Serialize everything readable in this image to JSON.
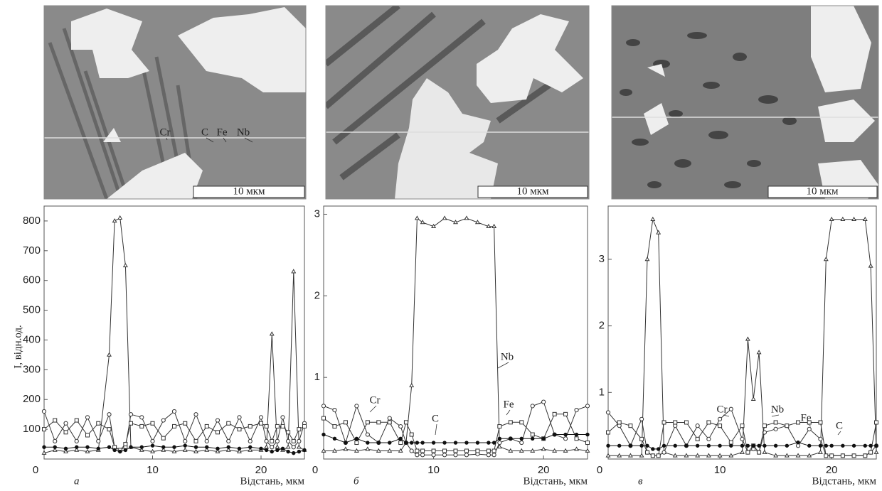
{
  "chart_data": [
    {
      "type": "line",
      "panel_label": "а",
      "scale_label": "10 мкм",
      "x_label": "Відстань, мкм",
      "y_label": "I, відн.од.",
      "xlim": [
        0,
        24
      ],
      "ylim": [
        0,
        850
      ],
      "xticks": [
        0,
        10,
        20
      ],
      "yticks": [
        100,
        200,
        300,
        400,
        500,
        600,
        700,
        800
      ],
      "x": [
        0,
        1,
        2,
        3,
        4,
        5,
        6,
        6.5,
        7,
        7.5,
        8,
        9,
        10,
        11,
        12,
        13,
        14,
        15,
        16,
        17,
        18,
        19,
        20,
        20.5,
        21,
        21.5,
        22,
        22.5,
        23,
        23.5,
        24
      ],
      "series": [
        {
          "name": "Nb",
          "color": "#333",
          "marker": "triangle",
          "values": [
            20,
            30,
            25,
            30,
            25,
            30,
            350,
            800,
            810,
            650,
            40,
            30,
            25,
            30,
            25,
            30,
            25,
            30,
            25,
            30,
            25,
            30,
            30,
            40,
            420,
            40,
            30,
            40,
            630,
            40,
            30
          ]
        },
        {
          "name": "Cr",
          "color": "#333",
          "marker": "circle",
          "values": [
            160,
            60,
            120,
            60,
            140,
            60,
            150,
            40,
            30,
            40,
            150,
            140,
            60,
            130,
            160,
            60,
            150,
            60,
            130,
            60,
            140,
            60,
            140,
            60,
            40,
            60,
            140,
            60,
            40,
            60,
            120
          ]
        },
        {
          "name": "Fe",
          "color": "#333",
          "marker": "square",
          "values": [
            100,
            130,
            90,
            130,
            80,
            120,
            100,
            40,
            30,
            50,
            120,
            110,
            120,
            70,
            110,
            120,
            60,
            110,
            90,
            120,
            100,
            110,
            120,
            110,
            60,
            110,
            110,
            90,
            60,
            100,
            110
          ]
        },
        {
          "name": "C",
          "color": "#111",
          "marker": "dot",
          "values": [
            40,
            40,
            35,
            40,
            40,
            35,
            40,
            30,
            25,
            30,
            40,
            40,
            45,
            40,
            40,
            45,
            40,
            40,
            35,
            40,
            35,
            40,
            35,
            30,
            25,
            30,
            35,
            25,
            20,
            25,
            30
          ]
        }
      ]
    },
    {
      "type": "line",
      "panel_label": "б",
      "scale_label": "10 мкм",
      "x_label": "Відстань, мкм",
      "xlim": [
        0,
        24
      ],
      "ylim": [
        0,
        3.1
      ],
      "xticks": [
        0,
        10,
        20
      ],
      "yticks": [
        1,
        2,
        3
      ],
      "x": [
        0,
        1,
        2,
        3,
        4,
        5,
        6,
        7,
        7.5,
        8,
        8.5,
        9,
        10,
        11,
        12,
        13,
        14,
        15,
        15.5,
        16,
        17,
        18,
        19,
        20,
        21,
        22,
        23,
        24
      ],
      "series": [
        {
          "name": "Nb",
          "color": "#333",
          "marker": "triangle",
          "values": [
            0.1,
            0.1,
            0.12,
            0.1,
            0.12,
            0.1,
            0.1,
            0.1,
            0.2,
            0.9,
            2.95,
            2.9,
            2.85,
            2.95,
            2.9,
            2.95,
            2.9,
            2.85,
            2.85,
            0.15,
            0.1,
            0.1,
            0.1,
            0.12,
            0.1,
            0.1,
            0.12,
            0.1
          ]
        },
        {
          "name": "Cr",
          "color": "#333",
          "marker": "circle",
          "values": [
            0.65,
            0.6,
            0.2,
            0.65,
            0.3,
            0.2,
            0.5,
            0.4,
            0.2,
            0.1,
            0.05,
            0.05,
            0.05,
            0.05,
            0.05,
            0.05,
            0.06,
            0.05,
            0.05,
            0.2,
            0.25,
            0.2,
            0.65,
            0.7,
            0.3,
            0.25,
            0.6,
            0.65
          ]
        },
        {
          "name": "Fe",
          "color": "#333",
          "marker": "square",
          "values": [
            0.5,
            0.4,
            0.45,
            0.2,
            0.45,
            0.45,
            0.45,
            0.2,
            0.45,
            0.3,
            0.1,
            0.1,
            0.1,
            0.1,
            0.1,
            0.1,
            0.1,
            0.1,
            0.1,
            0.4,
            0.45,
            0.45,
            0.3,
            0.25,
            0.55,
            0.55,
            0.25,
            0.2
          ]
        },
        {
          "name": "C",
          "color": "#111",
          "marker": "dot",
          "values": [
            0.3,
            0.25,
            0.2,
            0.25,
            0.2,
            0.2,
            0.2,
            0.25,
            0.2,
            0.2,
            0.2,
            0.2,
            0.2,
            0.2,
            0.2,
            0.2,
            0.2,
            0.2,
            0.2,
            0.25,
            0.25,
            0.25,
            0.25,
            0.25,
            0.3,
            0.3,
            0.3,
            0.3
          ]
        }
      ]
    },
    {
      "type": "line",
      "panel_label": "в",
      "scale_label": "10 мкм",
      "x_label": "Відстань, мкм",
      "xlim": [
        0,
        24
      ],
      "ylim": [
        0,
        3.8
      ],
      "xticks": [
        0,
        10,
        20
      ],
      "yticks": [
        1,
        2,
        3
      ],
      "x": [
        0,
        1,
        2,
        3,
        3.5,
        4,
        4.5,
        5,
        6,
        7,
        8,
        9,
        10,
        11,
        12,
        12.5,
        13,
        13.5,
        14,
        15,
        16,
        17,
        18,
        19,
        19.5,
        20,
        21,
        22,
        23,
        23.5,
        24
      ],
      "series": [
        {
          "name": "Nb",
          "color": "#333",
          "marker": "triangle",
          "values": [
            0.05,
            0.05,
            0.05,
            0.05,
            3.0,
            3.6,
            3.4,
            0.1,
            0.05,
            0.05,
            0.05,
            0.05,
            0.05,
            0.05,
            0.1,
            1.8,
            0.9,
            1.6,
            0.1,
            0.05,
            0.05,
            0.05,
            0.05,
            0.1,
            3.0,
            3.6,
            3.6,
            3.6,
            3.6,
            2.9,
            0.1
          ]
        },
        {
          "name": "Cr",
          "color": "#333",
          "marker": "circle",
          "values": [
            0.7,
            0.5,
            0.2,
            0.6,
            0.1,
            0.05,
            0.05,
            0.1,
            0.5,
            0.2,
            0.5,
            0.3,
            0.6,
            0.75,
            0.3,
            0.1,
            0.15,
            0.1,
            0.4,
            0.45,
            0.5,
            0.2,
            0.45,
            0.3,
            0.05,
            0.05,
            0.05,
            0.05,
            0.05,
            0.1,
            0.2
          ]
        },
        {
          "name": "Fe",
          "color": "#333",
          "marker": "square",
          "values": [
            0.4,
            0.55,
            0.5,
            0.3,
            0.1,
            0.05,
            0.05,
            0.55,
            0.55,
            0.55,
            0.3,
            0.55,
            0.5,
            0.25,
            0.5,
            0.1,
            0.2,
            0.1,
            0.5,
            0.55,
            0.5,
            0.55,
            0.55,
            0.55,
            0.05,
            0.05,
            0.05,
            0.05,
            0.05,
            0.1,
            0.55
          ]
        },
        {
          "name": "C",
          "color": "#111",
          "marker": "dot",
          "values": [
            0.2,
            0.2,
            0.2,
            0.2,
            0.2,
            0.15,
            0.15,
            0.2,
            0.2,
            0.2,
            0.2,
            0.2,
            0.2,
            0.2,
            0.2,
            0.2,
            0.2,
            0.2,
            0.2,
            0.2,
            0.2,
            0.25,
            0.2,
            0.2,
            0.2,
            0.2,
            0.2,
            0.2,
            0.2,
            0.2,
            0.2
          ]
        }
      ]
    }
  ]
}
